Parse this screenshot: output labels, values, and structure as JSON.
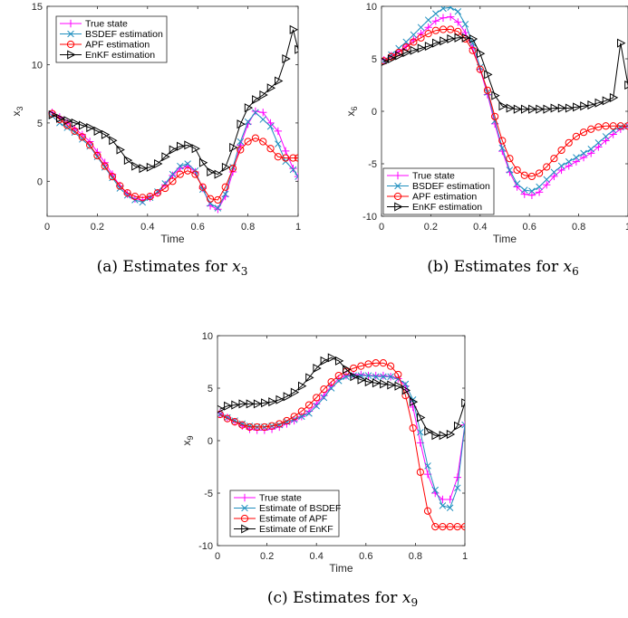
{
  "colors": {
    "true": "#ff00ff",
    "bsdef": "#1f8fbf",
    "apf": "#ff0000",
    "enkf": "#000000"
  },
  "chart_data": [
    {
      "type": "line",
      "caption_prefix": "(a) Estimates for ",
      "caption_var": "x",
      "caption_sub": "3",
      "xlabel": "Time",
      "ylabel_var": "x",
      "ylabel_sub": "3",
      "xlim": [
        0,
        1
      ],
      "ylim": [
        -3,
        15
      ],
      "xticks": [
        0,
        0.2,
        0.4,
        0.6,
        0.8,
        1
      ],
      "xtick_labels": [
        "0",
        "0.2",
        "0.4",
        "0.6",
        "0.8",
        "1"
      ],
      "yticks": [
        0,
        5,
        10,
        15
      ],
      "ytick_labels": [
        "0",
        "5",
        "10",
        "15"
      ],
      "legend_position": "top-left",
      "x": [
        0.02,
        0.05,
        0.08,
        0.11,
        0.14,
        0.17,
        0.2,
        0.23,
        0.26,
        0.29,
        0.32,
        0.35,
        0.38,
        0.41,
        0.44,
        0.47,
        0.5,
        0.53,
        0.56,
        0.59,
        0.62,
        0.65,
        0.68,
        0.71,
        0.74,
        0.77,
        0.8,
        0.83,
        0.86,
        0.89,
        0.92,
        0.95,
        0.98,
        1.0
      ],
      "series": [
        {
          "name": "True state",
          "marker": "plus",
          "color_key": "true",
          "values": [
            5.9,
            5.5,
            5.0,
            4.5,
            4.0,
            3.4,
            2.5,
            1.6,
            0.6,
            -0.4,
            -1.1,
            -1.5,
            -1.6,
            -1.4,
            -1.0,
            -0.3,
            0.5,
            1.1,
            1.3,
            0.8,
            -0.6,
            -2.1,
            -2.4,
            -1.3,
            0.8,
            3.1,
            4.9,
            6.0,
            5.9,
            5.0,
            4.3,
            2.6,
            1.1,
            0.4
          ]
        },
        {
          "name": "BSDEF estimation",
          "marker": "x",
          "color_key": "bsdef",
          "values": [
            5.6,
            5.0,
            4.6,
            4.2,
            3.6,
            3.0,
            2.1,
            1.2,
            0.3,
            -0.6,
            -1.2,
            -1.6,
            -1.8,
            -1.4,
            -0.9,
            -0.2,
            0.6,
            1.3,
            1.5,
            0.9,
            -0.7,
            -1.9,
            -2.3,
            -1.1,
            1.2,
            3.4,
            5.1,
            5.9,
            5.3,
            4.7,
            3.2,
            1.7,
            1.0,
            0.4
          ]
        },
        {
          "name": "APF estimation",
          "marker": "circle",
          "color_key": "apf",
          "values": [
            5.8,
            5.3,
            4.8,
            4.3,
            3.8,
            3.1,
            2.2,
            1.3,
            0.4,
            -0.4,
            -1.0,
            -1.3,
            -1.4,
            -1.3,
            -1.0,
            -0.6,
            0.0,
            0.6,
            0.9,
            0.6,
            -0.5,
            -1.5,
            -1.6,
            -0.5,
            1.1,
            2.7,
            3.4,
            3.7,
            3.4,
            2.8,
            2.1,
            2.0,
            2.0,
            2.0
          ]
        },
        {
          "name": "EnKF estimation",
          "marker": "triangle-right",
          "color_key": "enkf",
          "values": [
            5.7,
            5.4,
            5.2,
            5.0,
            4.8,
            4.6,
            4.3,
            4.0,
            3.5,
            2.7,
            1.8,
            1.3,
            1.1,
            1.2,
            1.5,
            2.1,
            2.7,
            3.0,
            3.1,
            2.8,
            1.6,
            0.8,
            0.6,
            1.2,
            2.9,
            4.9,
            6.3,
            7.0,
            7.4,
            8.0,
            8.6,
            10.5,
            13.0,
            11.3
          ]
        }
      ]
    },
    {
      "type": "line",
      "caption_prefix": "(b) Estimates for ",
      "caption_var": "x",
      "caption_sub": "6",
      "xlabel": "Time",
      "ylabel_var": "x",
      "ylabel_sub": "6",
      "xlim": [
        0,
        1
      ],
      "ylim": [
        -10,
        10
      ],
      "xticks": [
        0,
        0.2,
        0.4,
        0.6,
        0.8,
        1
      ],
      "xtick_labels": [
        "0",
        "0.2",
        "0.4",
        "0.6",
        "0.8",
        "1"
      ],
      "yticks": [
        -10,
        -5,
        0,
        5,
        10
      ],
      "ytick_labels": [
        "-10",
        "-5",
        "0",
        "5",
        "10"
      ],
      "legend_position": "bottom-left",
      "x": [
        0.01,
        0.04,
        0.07,
        0.1,
        0.13,
        0.16,
        0.19,
        0.22,
        0.25,
        0.28,
        0.31,
        0.34,
        0.37,
        0.4,
        0.43,
        0.46,
        0.49,
        0.52,
        0.55,
        0.58,
        0.61,
        0.64,
        0.67,
        0.7,
        0.73,
        0.76,
        0.79,
        0.82,
        0.85,
        0.88,
        0.91,
        0.94,
        0.97,
        1.0
      ],
      "series": [
        {
          "name": "True state",
          "marker": "plus",
          "color_key": "true",
          "values": [
            4.9,
            5.3,
            5.7,
            6.2,
            6.8,
            7.4,
            8.0,
            8.6,
            8.9,
            9.0,
            8.5,
            7.5,
            6.0,
            4.0,
            1.6,
            -1.2,
            -3.8,
            -5.8,
            -7.2,
            -7.9,
            -8.0,
            -7.7,
            -7.0,
            -6.2,
            -5.6,
            -5.2,
            -4.8,
            -4.4,
            -4.0,
            -3.4,
            -2.8,
            -2.2,
            -1.7,
            -1.4
          ]
        },
        {
          "name": "BSDEF estimation",
          "marker": "x",
          "color_key": "bsdef",
          "values": [
            4.8,
            5.4,
            6.0,
            6.6,
            7.3,
            8.0,
            8.7,
            9.3,
            9.8,
            9.9,
            9.5,
            8.3,
            6.5,
            4.2,
            1.8,
            -0.9,
            -3.5,
            -5.6,
            -6.9,
            -7.5,
            -7.6,
            -7.2,
            -6.5,
            -5.8,
            -5.2,
            -4.8,
            -4.4,
            -4.0,
            -3.6,
            -3.0,
            -2.4,
            -1.8,
            -1.5,
            -1.4
          ]
        },
        {
          "name": "APF estimation",
          "marker": "circle",
          "color_key": "apf",
          "values": [
            4.8,
            5.2,
            5.6,
            6.1,
            6.6,
            7.0,
            7.4,
            7.7,
            7.8,
            7.8,
            7.6,
            6.9,
            5.8,
            4.0,
            2.0,
            -0.5,
            -2.8,
            -4.5,
            -5.6,
            -6.1,
            -6.2,
            -5.9,
            -5.3,
            -4.5,
            -3.7,
            -3.0,
            -2.4,
            -2.0,
            -1.7,
            -1.5,
            -1.4,
            -1.4,
            -1.4,
            -1.4
          ]
        },
        {
          "name": "EnKF estimation",
          "marker": "triangle-right",
          "color_key": "enkf",
          "values": [
            4.7,
            5.0,
            5.3,
            5.6,
            5.8,
            6.0,
            6.2,
            6.5,
            6.7,
            6.9,
            7.0,
            7.0,
            6.9,
            5.5,
            3.5,
            1.5,
            0.5,
            0.3,
            0.2,
            0.2,
            0.2,
            0.2,
            0.2,
            0.3,
            0.3,
            0.3,
            0.4,
            0.5,
            0.6,
            0.8,
            1.0,
            1.3,
            6.5,
            2.5
          ]
        }
      ]
    },
    {
      "type": "line",
      "caption_prefix": "(c) Estimates for ",
      "caption_var": "x",
      "caption_sub": "9",
      "xlabel": "Time",
      "ylabel_var": "x",
      "ylabel_sub": "9",
      "xlim": [
        0,
        1
      ],
      "ylim": [
        -10,
        10
      ],
      "xticks": [
        0,
        0.2,
        0.4,
        0.6,
        0.8,
        1
      ],
      "xtick_labels": [
        "0",
        "0.2",
        "0.4",
        "0.6",
        "0.8",
        "1"
      ],
      "yticks": [
        -10,
        -5,
        0,
        5,
        10
      ],
      "ytick_labels": [
        "-10",
        "-5",
        "0",
        "5",
        "10"
      ],
      "legend_position": "bottom-left",
      "x": [
        0.01,
        0.04,
        0.07,
        0.1,
        0.13,
        0.16,
        0.19,
        0.22,
        0.25,
        0.28,
        0.31,
        0.34,
        0.37,
        0.4,
        0.43,
        0.46,
        0.49,
        0.52,
        0.55,
        0.58,
        0.61,
        0.64,
        0.67,
        0.7,
        0.73,
        0.76,
        0.79,
        0.82,
        0.85,
        0.88,
        0.91,
        0.94,
        0.97,
        1.0
      ],
      "series": [
        {
          "name": "True state",
          "marker": "plus",
          "color_key": "true",
          "values": [
            2.6,
            2.2,
            1.8,
            1.4,
            1.1,
            1.0,
            1.0,
            1.1,
            1.3,
            1.6,
            1.9,
            2.3,
            2.8,
            3.5,
            4.3,
            5.2,
            5.9,
            6.2,
            6.3,
            6.3,
            6.2,
            6.2,
            6.2,
            6.1,
            5.9,
            5.2,
            3.2,
            -0.2,
            -3.2,
            -5.0,
            -5.6,
            -5.6,
            -3.5,
            1.5
          ]
        },
        {
          "name": "Estimate of BSDEF",
          "marker": "x",
          "color_key": "bsdef",
          "values": [
            2.5,
            2.2,
            1.9,
            1.6,
            1.4,
            1.3,
            1.3,
            1.4,
            1.5,
            1.8,
            2.0,
            2.3,
            2.6,
            3.3,
            4.1,
            5.0,
            5.7,
            6.1,
            6.2,
            6.2,
            6.2,
            6.1,
            6.1,
            6.1,
            5.9,
            5.4,
            3.9,
            0.8,
            -2.4,
            -4.7,
            -6.2,
            -6.4,
            -4.5,
            1.5
          ]
        },
        {
          "name": "Estimate of APF",
          "marker": "circle",
          "color_key": "apf",
          "values": [
            2.5,
            2.1,
            1.8,
            1.5,
            1.3,
            1.3,
            1.3,
            1.4,
            1.6,
            1.9,
            2.3,
            2.8,
            3.4,
            4.1,
            4.9,
            5.6,
            6.2,
            6.6,
            6.9,
            7.1,
            7.3,
            7.4,
            7.4,
            7.1,
            6.3,
            4.3,
            1.2,
            -3.0,
            -6.7,
            -8.2,
            -8.2,
            -8.2,
            -8.2,
            -8.2
          ]
        },
        {
          "name": "Estimate of EnKF",
          "marker": "triangle-right",
          "color_key": "enkf",
          "values": [
            3.0,
            3.3,
            3.4,
            3.5,
            3.5,
            3.5,
            3.6,
            3.7,
            3.9,
            4.2,
            4.6,
            5.2,
            6.0,
            6.9,
            7.6,
            7.9,
            7.6,
            6.8,
            6.1,
            5.8,
            5.6,
            5.5,
            5.4,
            5.3,
            5.2,
            4.8,
            3.7,
            2.2,
            0.9,
            0.5,
            0.5,
            0.6,
            1.4,
            3.6
          ]
        }
      ]
    }
  ]
}
